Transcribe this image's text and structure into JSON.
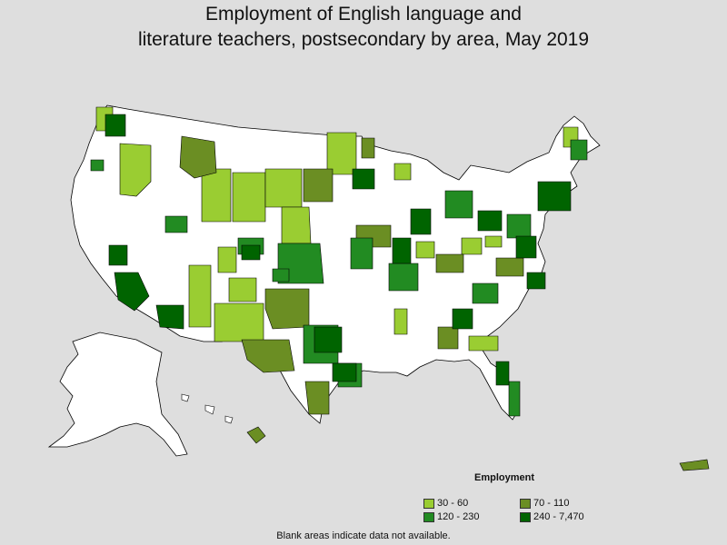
{
  "title_line1": "Employment of English language and",
  "title_line2": "literature teachers, postsecondary by area, May 2019",
  "legend": {
    "title": "Employment",
    "items": [
      {
        "label": "30 - 60",
        "color": "#9acd32"
      },
      {
        "label": "70 - 110",
        "color": "#6b8e23"
      },
      {
        "label": "120 - 230",
        "color": "#228b22"
      },
      {
        "label": "240 - 7,470",
        "color": "#006400"
      }
    ]
  },
  "footnote": "Blank areas indicate data not available.",
  "colors": {
    "background": "#dedede",
    "no_data": "#ffffff",
    "border": "#000000"
  }
}
